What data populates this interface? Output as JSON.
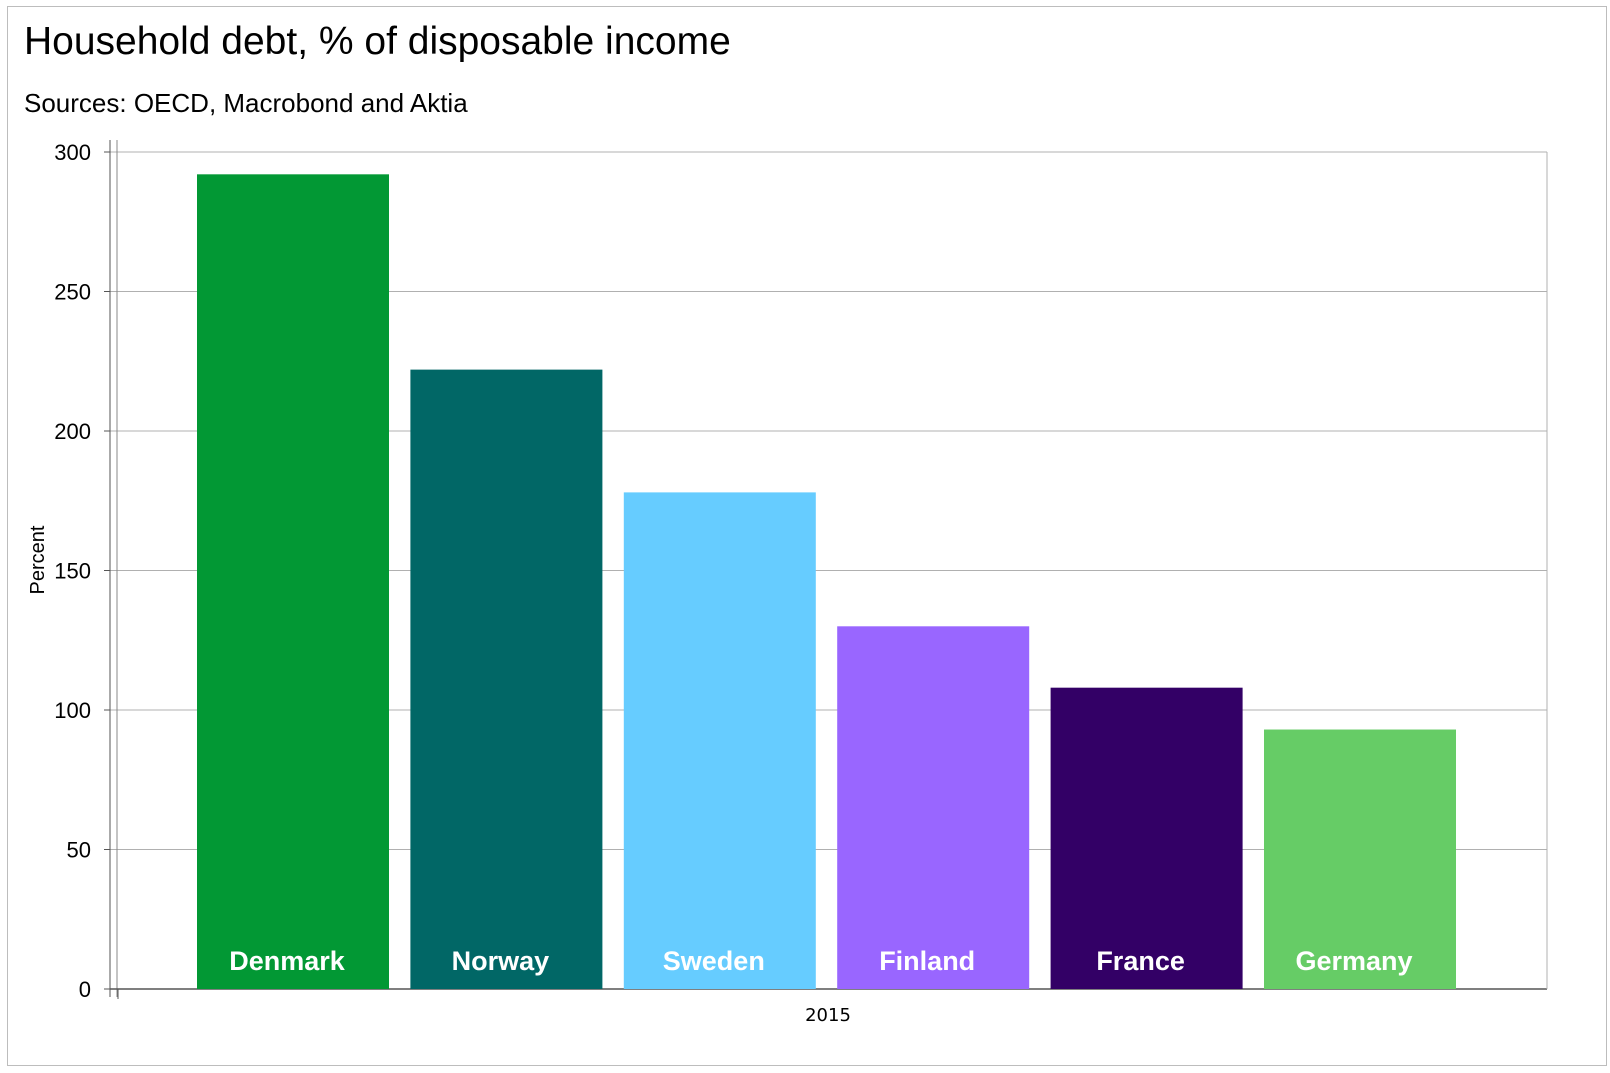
{
  "chart_data": {
    "type": "bar",
    "title": "Household debt, % of disposable income",
    "subtitle": "Sources: OECD, Macrobond and Aktia",
    "ylabel": "Percent",
    "xlabel": "2015",
    "ylim": [
      0,
      300
    ],
    "yticks": [
      0,
      50,
      100,
      150,
      200,
      250,
      300
    ],
    "grid": true,
    "legend": "none",
    "categories": [
      "Denmark",
      "Norway",
      "Sweden",
      "Finland",
      "France",
      "Germany"
    ],
    "values": [
      292,
      222,
      178,
      130,
      108,
      93
    ],
    "colors": [
      "#029834",
      "#016766",
      "#66ccff",
      "#9966ff",
      "#330066",
      "#66cc66"
    ]
  }
}
